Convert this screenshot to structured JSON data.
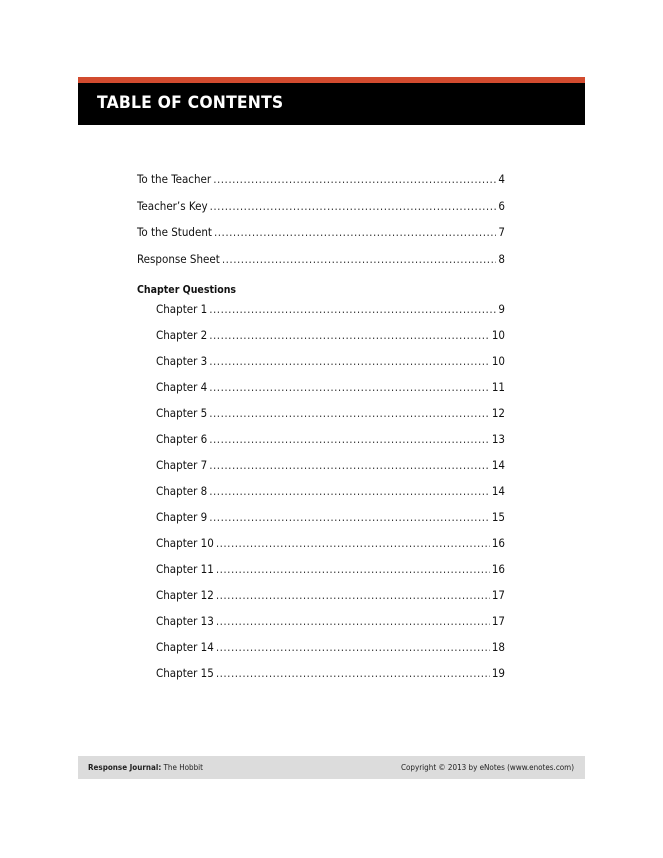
{
  "header": {
    "title": "TABLE OF CONTENTS",
    "accent": "#d24b2f"
  },
  "toc": {
    "entries": [
      {
        "label": "To the Teacher",
        "page": "4"
      },
      {
        "label": "Teacher’s Key",
        "page": "6"
      },
      {
        "label": "To the Student",
        "page": "7"
      },
      {
        "label": "Response Sheet",
        "page": "8"
      }
    ],
    "section_heading": "Chapter Questions",
    "chapters": [
      {
        "label": "Chapter 1",
        "page": "9"
      },
      {
        "label": "Chapter 2",
        "page": "10"
      },
      {
        "label": "Chapter 3",
        "page": "10"
      },
      {
        "label": "Chapter 4",
        "page": "11"
      },
      {
        "label": "Chapter 5",
        "page": "12"
      },
      {
        "label": "Chapter 6",
        "page": "13"
      },
      {
        "label": "Chapter 7",
        "page": "14"
      },
      {
        "label": "Chapter 8",
        "page": "14"
      },
      {
        "label": "Chapter 9",
        "page": "15"
      },
      {
        "label": "Chapter 10",
        "page": "16"
      },
      {
        "label": "Chapter 11",
        "page": "16"
      },
      {
        "label": "Chapter 12",
        "page": "17"
      },
      {
        "label": "Chapter 13",
        "page": "17"
      },
      {
        "label": "Chapter 14",
        "page": "18"
      },
      {
        "label": "Chapter 15",
        "page": "19"
      }
    ]
  },
  "footer": {
    "left_bold": "Response Journal:",
    "left_title": "The Hobbit",
    "right": "Copyright © 2013 by eNotes (www.enotes.com)"
  }
}
